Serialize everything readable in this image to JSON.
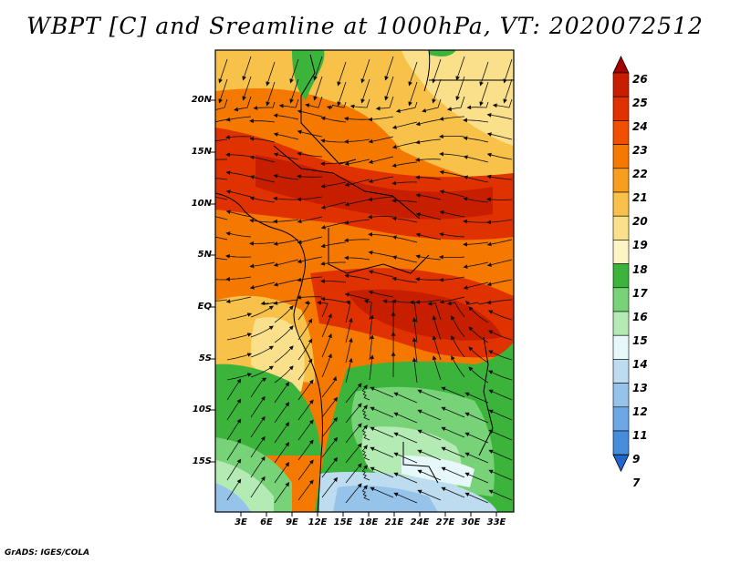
{
  "title": "WBPT [C] and Sreamline at 1000hPa, VT: 2020072512",
  "footer": "GrADS: IGES/COLA",
  "map": {
    "lat_ticks": [
      "20N",
      "15N",
      "10N",
      "5N",
      "EQ",
      "5S",
      "10S",
      "15S"
    ],
    "lon_ticks": [
      "3E",
      "6E",
      "9E",
      "12E",
      "15E",
      "18E",
      "21E",
      "24E",
      "27E",
      "30E",
      "33E"
    ],
    "lon_range": [
      0,
      35
    ],
    "lat_range": [
      -20,
      24.5
    ]
  },
  "colorbar": {
    "labels": [
      "26",
      "25",
      "24",
      "23",
      "22",
      "21",
      "20",
      "19",
      "18",
      "17",
      "16",
      "15",
      "14",
      "13",
      "12",
      "11",
      "9",
      "7"
    ],
    "colors": [
      "#a50000",
      "#c81e00",
      "#e03200",
      "#f05000",
      "#f57800",
      "#f79e1e",
      "#f8c24a",
      "#fbe08c",
      "#fcf4c4",
      "#3cb43c",
      "#78d278",
      "#b4eab4",
      "#e6f8fa",
      "#bedcf0",
      "#96c3ea",
      "#6ea8e4",
      "#468ddc",
      "#2066cc"
    ]
  },
  "data_layers": {
    "field": "WBPT",
    "unit": "C",
    "level": "1000hPa",
    "valid_time": "2020072512"
  }
}
